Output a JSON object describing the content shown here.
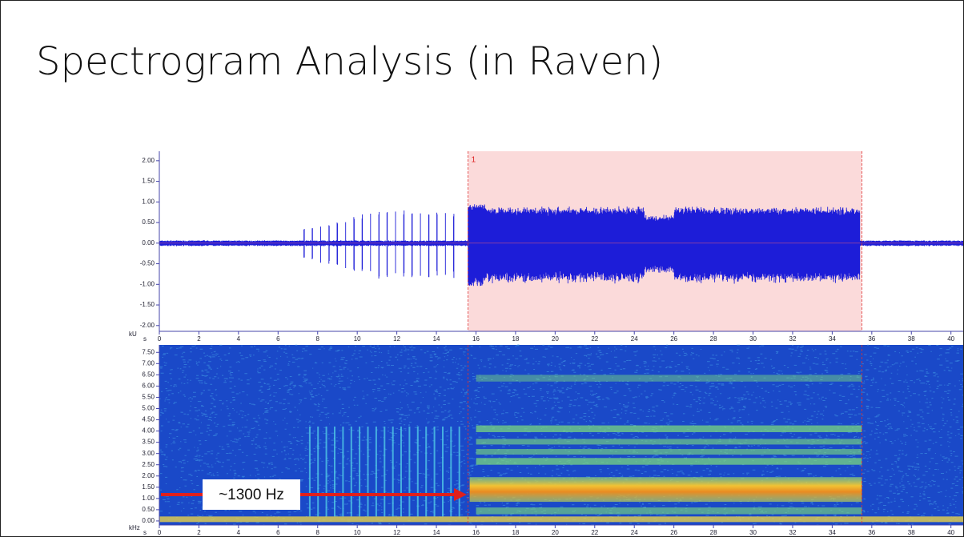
{
  "header": {
    "title": "Spectrogram Analysis (in Raven)"
  },
  "waveform": {
    "unit": "kU",
    "x_unit": "s",
    "ylim": [
      -2.14,
      2.23
    ],
    "yticks": [
      {
        "value": 2,
        "label": "2.00"
      },
      {
        "value": 1.5,
        "label": "1.50"
      },
      {
        "value": 1,
        "label": "1.00"
      },
      {
        "value": 0.5,
        "label": "0.50"
      },
      {
        "value": 0,
        "label": "0.00"
      },
      {
        "value": -0.5,
        "label": "-0.50"
      },
      {
        "value": -1,
        "label": "-1.00"
      },
      {
        "value": -1.5,
        "label": "-1.50"
      },
      {
        "value": -2,
        "label": "-2.00"
      }
    ],
    "xlim": [
      0,
      40.7
    ],
    "xticks": [
      0,
      2,
      4,
      6,
      8,
      10,
      12,
      14,
      16,
      18,
      20,
      22,
      24,
      26,
      28,
      30,
      32,
      34,
      36,
      38,
      40
    ]
  },
  "spectrogram": {
    "unit": "kHz",
    "x_unit": "s",
    "ylim": [
      -0.18,
      7.83
    ],
    "yticks": [
      {
        "value": 7.5,
        "label": "7.50"
      },
      {
        "value": 7,
        "label": "7.00"
      },
      {
        "value": 6.5,
        "label": "6.50"
      },
      {
        "value": 6,
        "label": "6.00"
      },
      {
        "value": 5.5,
        "label": "5.50"
      },
      {
        "value": 5,
        "label": "5.00"
      },
      {
        "value": 4.5,
        "label": "4.50"
      },
      {
        "value": 4,
        "label": "4.00"
      },
      {
        "value": 3.5,
        "label": "3.50"
      },
      {
        "value": 3,
        "label": "3.00"
      },
      {
        "value": 2.5,
        "label": "2.50"
      },
      {
        "value": 2,
        "label": "2.00"
      },
      {
        "value": 1.5,
        "label": "1.50"
      },
      {
        "value": 1,
        "label": "1.00"
      },
      {
        "value": 0.5,
        "label": "0.50"
      },
      {
        "value": 0,
        "label": "0.00"
      }
    ],
    "xlim": [
      0,
      40.7
    ],
    "xticks": [
      0,
      2,
      4,
      6,
      8,
      10,
      12,
      14,
      16,
      18,
      20,
      22,
      24,
      26,
      28,
      30,
      32,
      34,
      36,
      38,
      40
    ]
  },
  "selection": {
    "label": "1",
    "start": 15.6,
    "end": 35.5
  },
  "annotation": {
    "text": "~1300 Hz"
  }
}
